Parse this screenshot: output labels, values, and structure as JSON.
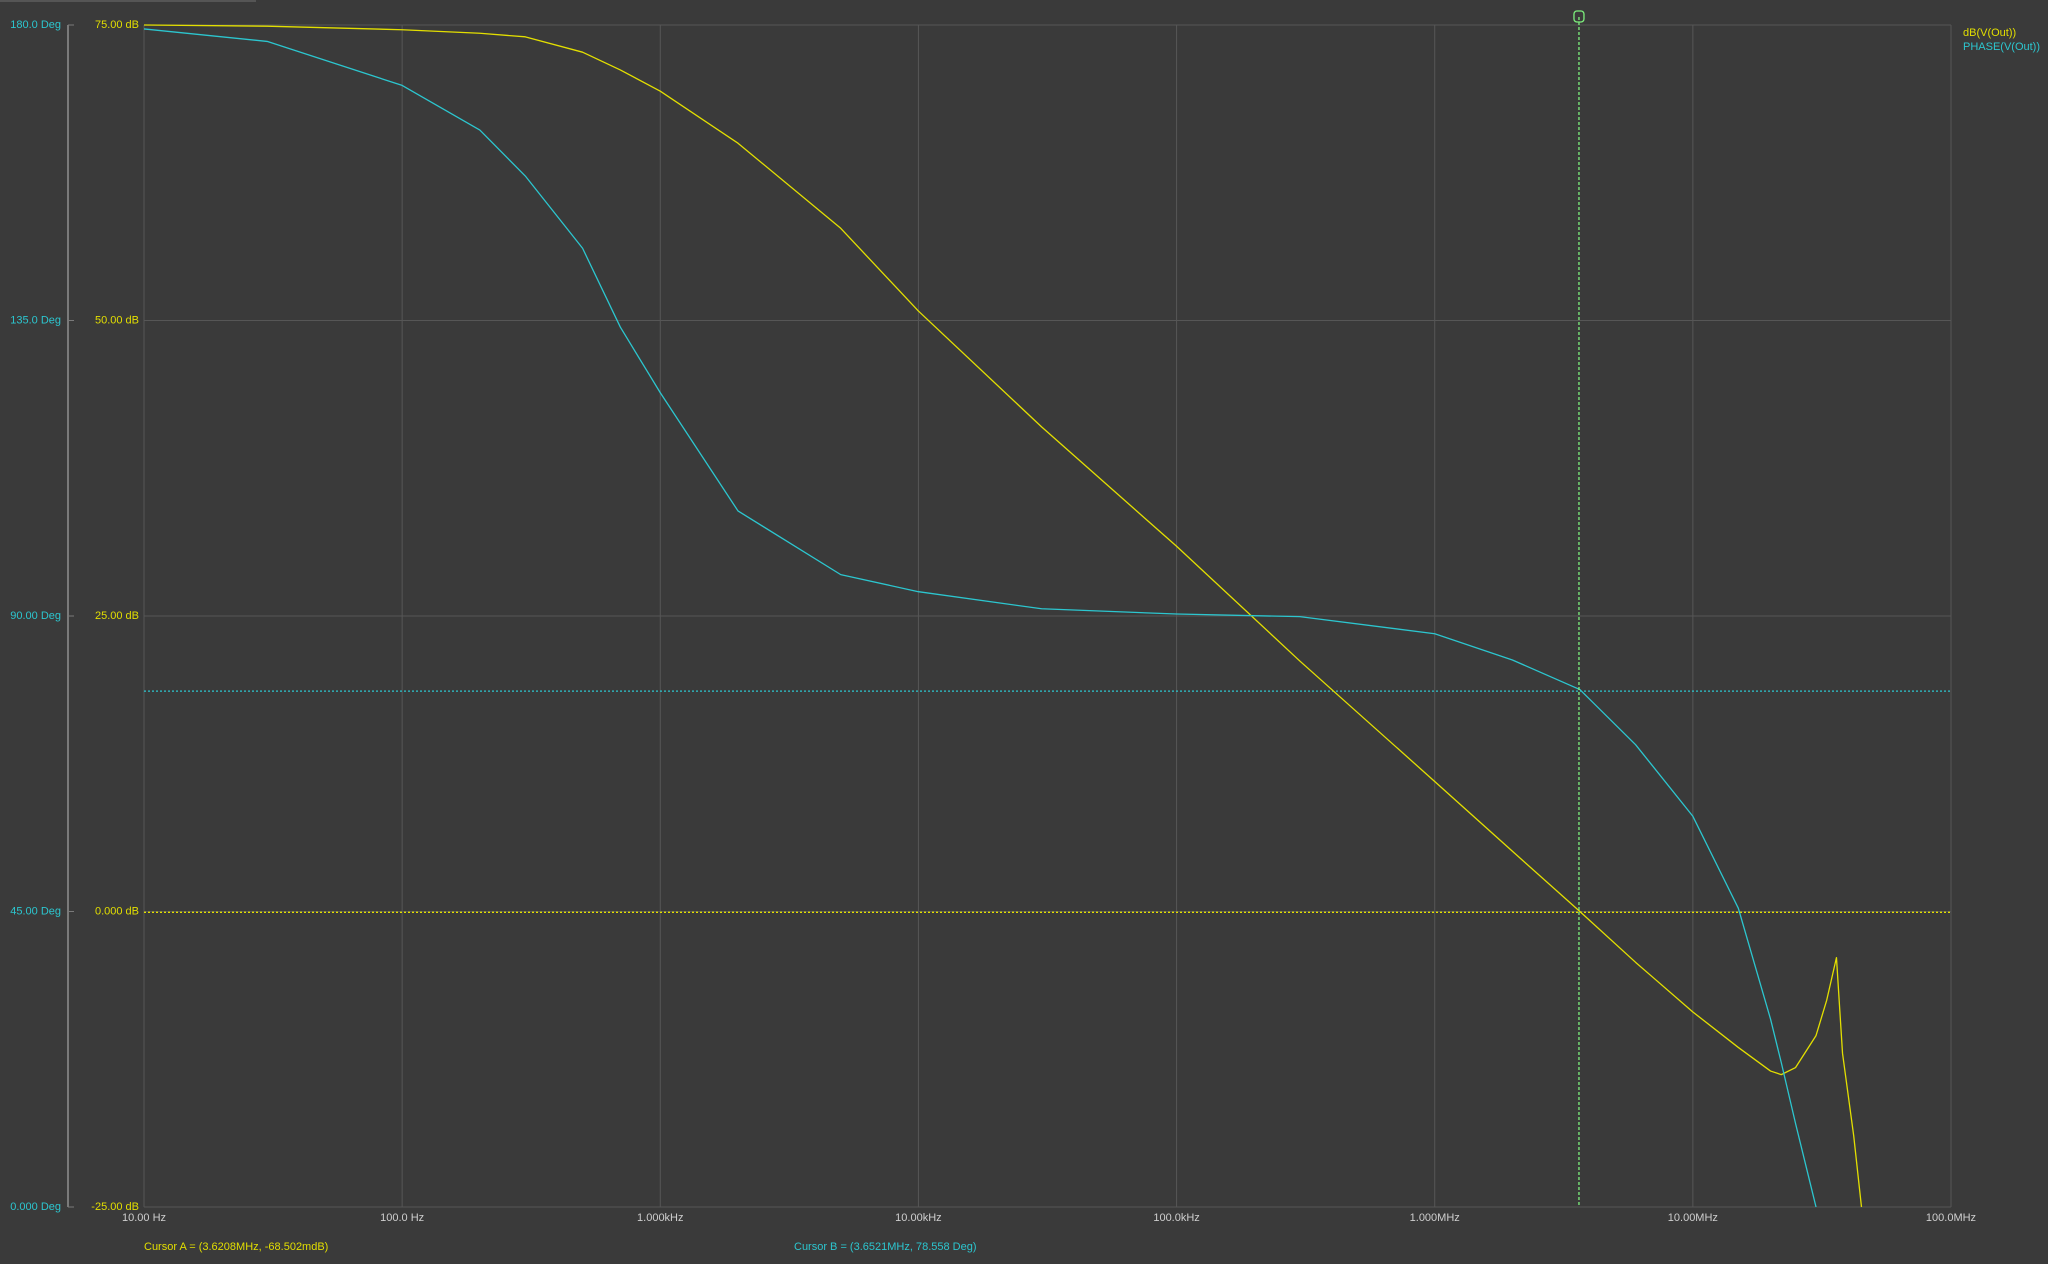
{
  "chart_data": {
    "type": "line",
    "x_log": true,
    "grid": true,
    "legend": "top-right",
    "xlim": [
      10,
      100000000
    ],
    "xticks": [
      {
        "value": 10,
        "label": "10.00 Hz"
      },
      {
        "value": 100,
        "label": "100.0 Hz"
      },
      {
        "value": 1000,
        "label": "1.000kHz"
      },
      {
        "value": 10000,
        "label": "10.00kHz"
      },
      {
        "value": 100000,
        "label": "100.0kHz"
      },
      {
        "value": 1000000,
        "label": "1.000MHz"
      },
      {
        "value": 10000000,
        "label": "10.00MHz"
      },
      {
        "value": 100000000,
        "label": "100.0MHz"
      }
    ],
    "ylim": [
      -25,
      75
    ],
    "yticks": [
      {
        "value": -25,
        "label": "-25.00 dB"
      },
      {
        "value": 0,
        "label": "0.000 dB"
      },
      {
        "value": 25,
        "label": "25.00 dB"
      },
      {
        "value": 50,
        "label": "50.00 dB"
      },
      {
        "value": 75,
        "label": "75.00 dB"
      }
    ],
    "y2lim": [
      0,
      180
    ],
    "y2ticks": [
      {
        "value": 0,
        "label": "0.000 Deg"
      },
      {
        "value": 45,
        "label": "45.00 Deg"
      },
      {
        "value": 90,
        "label": "90.00 Deg"
      },
      {
        "value": 135,
        "label": "135.0 Deg"
      },
      {
        "value": 180,
        "label": "180.0 Deg"
      }
    ],
    "x": [
      10,
      30,
      100,
      200,
      300,
      500,
      700,
      1000,
      2000,
      5000,
      10000,
      30000,
      100000,
      300000,
      1000000,
      2000000,
      3650000,
      6000000,
      10000000,
      15000000,
      20000000,
      22000000,
      25000000,
      30000000,
      33000000,
      36000000,
      38000000,
      42000000,
      45000000
    ],
    "series": [
      {
        "name": "dB(V(Out))",
        "color": "#e3df00",
        "values": [
          75,
          74.9,
          74.6,
          74.3,
          74,
          72.7,
          71.2,
          69.4,
          65,
          57.8,
          50.8,
          41,
          30.9,
          21.2,
          11,
          5.1,
          0,
          -4.3,
          -8.5,
          -11.5,
          -13.5,
          -13.8,
          -13.2,
          -10.5,
          -7.5,
          -3.9,
          -12,
          -19,
          -25
        ]
      },
      {
        "name": "PHASE(V(Out))",
        "color": "#2cc6cf",
        "axis": "y2",
        "values": [
          179.4,
          177.5,
          170.8,
          164,
          157,
          146,
          134,
          124,
          106,
          96.3,
          93.7,
          91.1,
          90.3,
          89.9,
          87.3,
          83.3,
          78.8,
          70.4,
          59.5,
          45.5,
          28.6,
          22,
          12.7,
          0,
          null,
          null,
          null,
          null,
          null
        ]
      }
    ],
    "cursors": [
      {
        "label": "Cursor A = (3.6208MHz, -68.502mdB)",
        "x": 3620800,
        "y": -0.068502,
        "color": "#e3df00"
      },
      {
        "label": "Cursor B = (3.6521MHz, 78.558 Deg)",
        "x": 3652100,
        "y": 78.558,
        "axis": "y2",
        "color": "#2cc6cf"
      }
    ]
  }
}
